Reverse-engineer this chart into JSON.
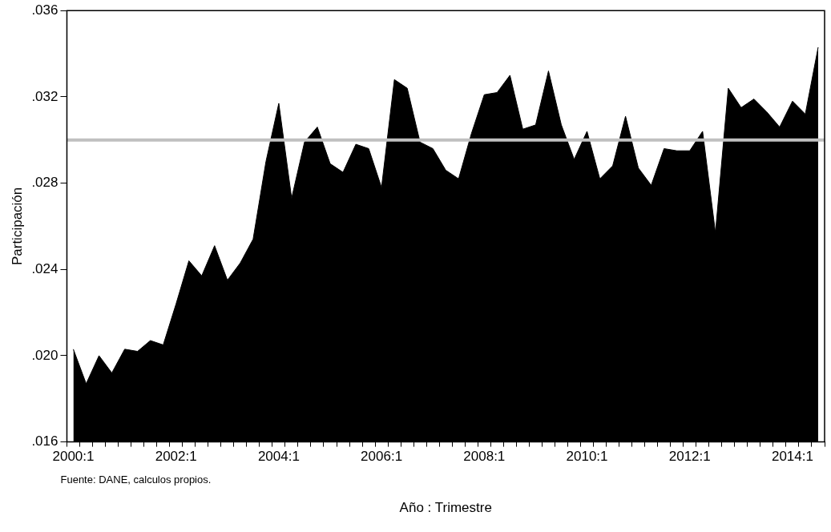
{
  "chart_data": {
    "type": "area",
    "ylabel": "Participación",
    "xlabel": "Año : Trimestre",
    "annotations": [
      "Fuente: DANE, calculos propios."
    ],
    "categories": [
      "2000:1",
      null,
      null,
      null,
      null,
      null,
      null,
      null,
      "2002:1",
      null,
      null,
      null,
      null,
      null,
      null,
      null,
      "2004:1",
      null,
      null,
      null,
      null,
      null,
      null,
      null,
      "2006:1",
      null,
      null,
      null,
      null,
      null,
      null,
      null,
      "2008:1",
      null,
      null,
      null,
      null,
      null,
      null,
      null,
      "2010:1",
      null,
      null,
      null,
      null,
      null,
      null,
      null,
      "2012:1",
      null,
      null,
      null,
      null,
      null,
      null,
      null,
      "2014:1",
      null,
      null
    ],
    "series": [
      {
        "color": "#000000",
        "values": [
          0.0203,
          0.0187,
          0.02,
          0.0192,
          0.0203,
          0.0202,
          0.0207,
          0.0205,
          0.0224,
          0.0244,
          0.0237,
          0.0251,
          0.0235,
          0.0243,
          0.0254,
          0.029,
          0.0317,
          0.0273,
          0.0299,
          0.0306,
          0.0289,
          0.0285,
          0.0298,
          0.0296,
          0.0278,
          0.0328,
          0.0324,
          0.0299,
          0.0296,
          0.0286,
          0.0282,
          0.0303,
          0.0321,
          0.0322,
          0.033,
          0.0305,
          0.0307,
          0.0332,
          0.0307,
          0.0291,
          0.0304,
          0.0282,
          0.0288,
          0.0311,
          0.0287,
          0.0279,
          0.0296,
          0.0295,
          0.0295,
          0.0304,
          0.0257,
          0.0324,
          0.0315,
          0.0319,
          0.0313,
          0.0306,
          0.0318,
          0.0312,
          0.0343
        ]
      }
    ],
    "ylim": [
      0.016,
      0.036
    ],
    "yticks": [
      {
        "value": 0.016,
        "label": ".016"
      },
      {
        "value": 0.02,
        "label": ".020"
      },
      {
        "value": 0.024,
        "label": ".024"
      },
      {
        "value": 0.028,
        "label": ".028"
      },
      {
        "value": 0.032,
        "label": ".032"
      },
      {
        "value": 0.036,
        "label": ".036"
      }
    ],
    "ref_lines": [
      {
        "axis": "y",
        "value": 0.03,
        "color": "#c0c0c0"
      }
    ],
    "grid": false,
    "legend": false
  }
}
